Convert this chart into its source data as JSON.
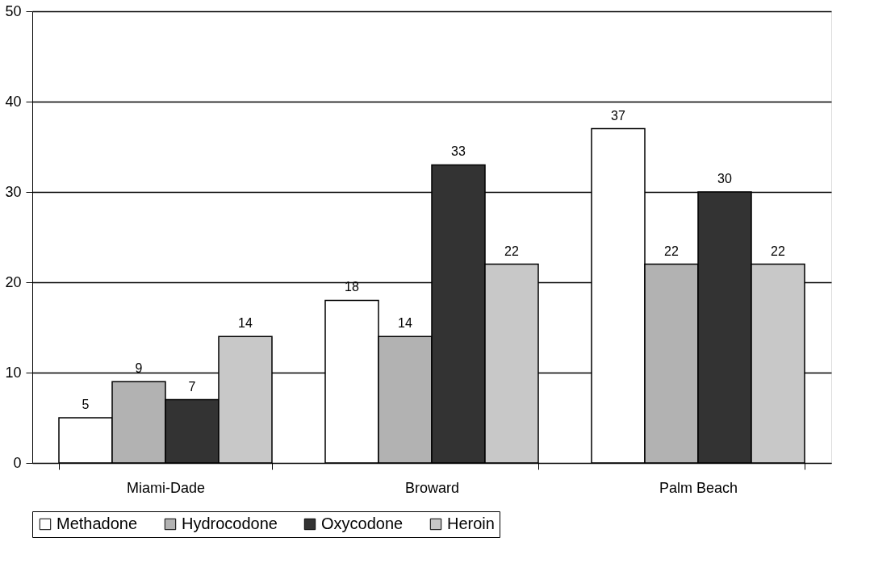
{
  "chart_data": {
    "type": "bar",
    "categories": [
      "Miami-Dade",
      "Broward",
      "Palm Beach"
    ],
    "series": [
      {
        "name": "Methadone",
        "color": "#ffffff",
        "values": [
          5,
          18,
          37
        ]
      },
      {
        "name": "Hydrocodone",
        "color": "#b2b2b2",
        "values": [
          9,
          14,
          22
        ]
      },
      {
        "name": "Oxycodone",
        "color": "#333333",
        "values": [
          7,
          33,
          30
        ]
      },
      {
        "name": "Heroin",
        "color": "#c8c8c8",
        "values": [
          14,
          22,
          22
        ]
      }
    ],
    "ylim": [
      0,
      50
    ],
    "yticks": [
      0,
      10,
      20,
      30,
      40,
      50
    ],
    "grid": "y",
    "legend": "bottom",
    "data_labels": true
  }
}
